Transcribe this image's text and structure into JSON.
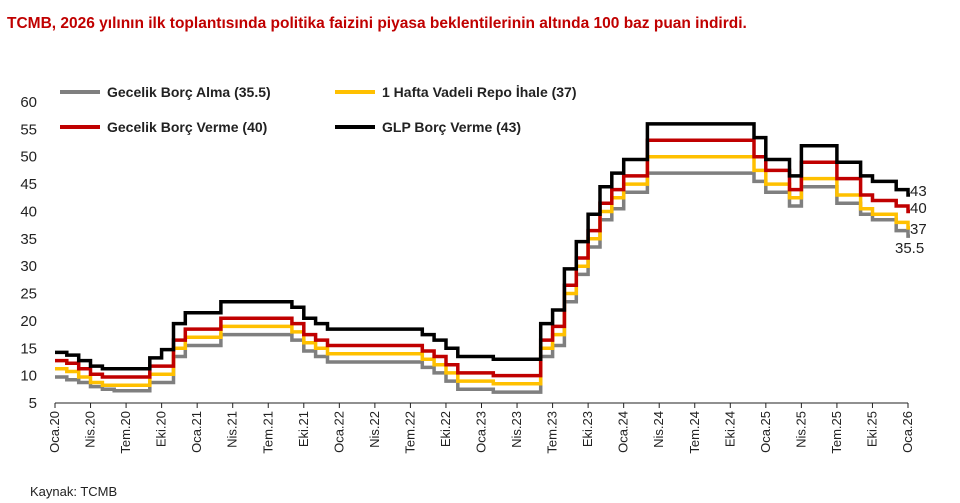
{
  "title": "TCMB, 2026 yılının ilk toplantısında politika faizini piyasa beklentilerinin altında 100 baz puan indirdi.",
  "source": "Kaynak: TCMB",
  "chart_data": {
    "type": "line",
    "ylim": [
      5,
      60
    ],
    "yticks": [
      5,
      10,
      15,
      20,
      25,
      30,
      35,
      40,
      45,
      50,
      55,
      60
    ],
    "xlim": [
      "2020-01",
      "2026-01"
    ],
    "xticks": [
      {
        "month": "2020-01",
        "label": "Oca.20"
      },
      {
        "month": "2020-04",
        "label": "Nis.20"
      },
      {
        "month": "2020-07",
        "label": "Tem.20"
      },
      {
        "month": "2020-10",
        "label": "Eki.20"
      },
      {
        "month": "2021-01",
        "label": "Oca.21"
      },
      {
        "month": "2021-04",
        "label": "Nis.21"
      },
      {
        "month": "2021-07",
        "label": "Tem.21"
      },
      {
        "month": "2021-10",
        "label": "Eki.21"
      },
      {
        "month": "2022-01",
        "label": "Oca.22"
      },
      {
        "month": "2022-04",
        "label": "Nis.22"
      },
      {
        "month": "2022-07",
        "label": "Tem.22"
      },
      {
        "month": "2022-10",
        "label": "Eki.22"
      },
      {
        "month": "2023-01",
        "label": "Oca.23"
      },
      {
        "month": "2023-04",
        "label": "Nis.23"
      },
      {
        "month": "2023-07",
        "label": "Tem.23"
      },
      {
        "month": "2023-10",
        "label": "Eki.23"
      },
      {
        "month": "2024-01",
        "label": "Oca.24"
      },
      {
        "month": "2024-04",
        "label": "Nis.24"
      },
      {
        "month": "2024-07",
        "label": "Tem.24"
      },
      {
        "month": "2024-10",
        "label": "Eki.24"
      },
      {
        "month": "2025-01",
        "label": "Oca.25"
      },
      {
        "month": "2025-04",
        "label": "Nis.25"
      },
      {
        "month": "2025-07",
        "label": "Tem.25"
      },
      {
        "month": "2025-10",
        "label": "Eki.25"
      },
      {
        "month": "2026-01",
        "label": "Oca.26"
      }
    ],
    "legend_position": "top-left, two columns",
    "series": [
      {
        "name": "Gecelik Borç Alma (35.5)",
        "color": "#7f7f7f",
        "end_label": "35.5",
        "points": [
          [
            "2020-01",
            9.75
          ],
          [
            "2020-02",
            9.25
          ],
          [
            "2020-03",
            8.75
          ],
          [
            "2020-04",
            8.0
          ],
          [
            "2020-05",
            7.5
          ],
          [
            "2020-06",
            7.25
          ],
          [
            "2020-09",
            8.75
          ],
          [
            "2020-11",
            13.5
          ],
          [
            "2020-12",
            15.5
          ],
          [
            "2021-03",
            17.5
          ],
          [
            "2021-09",
            16.5
          ],
          [
            "2021-10",
            14.5
          ],
          [
            "2021-11",
            13.5
          ],
          [
            "2021-12",
            12.5
          ],
          [
            "2022-08",
            11.5
          ],
          [
            "2022-09",
            10.5
          ],
          [
            "2022-10",
            9.0
          ],
          [
            "2022-11",
            7.5
          ],
          [
            "2023-02",
            7.0
          ],
          [
            "2023-06",
            13.5
          ],
          [
            "2023-07",
            15.5
          ],
          [
            "2023-08",
            23.5
          ],
          [
            "2023-09",
            28.5
          ],
          [
            "2023-10",
            33.5
          ],
          [
            "2023-11",
            38.5
          ],
          [
            "2023-12",
            40.5
          ],
          [
            "2024-01",
            43.5
          ],
          [
            "2024-03",
            47.0
          ],
          [
            "2024-12",
            45.5
          ],
          [
            "2025-01",
            43.5
          ],
          [
            "2025-03",
            41.0
          ],
          [
            "2025-04",
            44.5
          ],
          [
            "2025-07",
            41.5
          ],
          [
            "2025-09",
            39.5
          ],
          [
            "2025-10",
            38.5
          ],
          [
            "2025-12",
            36.5
          ],
          [
            "2026-01",
            35.5
          ]
        ]
      },
      {
        "name": "1 Hafta Vadeli Repo İhale (37)",
        "color": "#ffc000",
        "end_label": "37",
        "points": [
          [
            "2020-01",
            11.25
          ],
          [
            "2020-02",
            10.75
          ],
          [
            "2020-03",
            9.75
          ],
          [
            "2020-04",
            8.75
          ],
          [
            "2020-05",
            8.25
          ],
          [
            "2020-09",
            10.25
          ],
          [
            "2020-11",
            15.0
          ],
          [
            "2020-12",
            17.0
          ],
          [
            "2021-03",
            19.0
          ],
          [
            "2021-09",
            18.0
          ],
          [
            "2021-10",
            16.0
          ],
          [
            "2021-11",
            15.0
          ],
          [
            "2021-12",
            14.0
          ],
          [
            "2022-08",
            13.0
          ],
          [
            "2022-09",
            12.0
          ],
          [
            "2022-10",
            10.5
          ],
          [
            "2022-11",
            9.0
          ],
          [
            "2023-02",
            8.5
          ],
          [
            "2023-06",
            15.0
          ],
          [
            "2023-07",
            17.5
          ],
          [
            "2023-08",
            25.0
          ],
          [
            "2023-09",
            30.0
          ],
          [
            "2023-10",
            35.0
          ],
          [
            "2023-11",
            40.0
          ],
          [
            "2023-12",
            42.5
          ],
          [
            "2024-01",
            45.0
          ],
          [
            "2024-03",
            50.0
          ],
          [
            "2024-12",
            47.5
          ],
          [
            "2025-01",
            45.0
          ],
          [
            "2025-03",
            42.5
          ],
          [
            "2025-04",
            46.0
          ],
          [
            "2025-07",
            43.0
          ],
          [
            "2025-09",
            40.5
          ],
          [
            "2025-10",
            39.5
          ],
          [
            "2025-12",
            38.0
          ],
          [
            "2026-01",
            37.0
          ]
        ]
      },
      {
        "name": "Gecelik Borç Verme (40)",
        "color": "#c00000",
        "end_label": "40",
        "points": [
          [
            "2020-01",
            12.75
          ],
          [
            "2020-02",
            12.25
          ],
          [
            "2020-03",
            11.25
          ],
          [
            "2020-04",
            10.25
          ],
          [
            "2020-05",
            9.75
          ],
          [
            "2020-09",
            11.75
          ],
          [
            "2020-11",
            16.5
          ],
          [
            "2020-12",
            18.5
          ],
          [
            "2021-03",
            20.5
          ],
          [
            "2021-09",
            19.5
          ],
          [
            "2021-10",
            17.5
          ],
          [
            "2021-11",
            16.5
          ],
          [
            "2021-12",
            15.5
          ],
          [
            "2022-08",
            14.5
          ],
          [
            "2022-09",
            13.5
          ],
          [
            "2022-10",
            12.0
          ],
          [
            "2022-11",
            10.5
          ],
          [
            "2023-02",
            10.0
          ],
          [
            "2023-06",
            16.5
          ],
          [
            "2023-07",
            19.0
          ],
          [
            "2023-08",
            26.5
          ],
          [
            "2023-09",
            31.5
          ],
          [
            "2023-10",
            36.5
          ],
          [
            "2023-11",
            41.5
          ],
          [
            "2023-12",
            44.0
          ],
          [
            "2024-01",
            46.5
          ],
          [
            "2024-03",
            53.0
          ],
          [
            "2024-12",
            50.0
          ],
          [
            "2025-01",
            47.5
          ],
          [
            "2025-03",
            44.0
          ],
          [
            "2025-04",
            49.0
          ],
          [
            "2025-07",
            46.0
          ],
          [
            "2025-09",
            43.0
          ],
          [
            "2025-10",
            42.0
          ],
          [
            "2025-12",
            41.0
          ],
          [
            "2026-01",
            40.0
          ]
        ]
      },
      {
        "name": "GLP Borç Verme (43)",
        "color": "#000000",
        "end_label": "43",
        "points": [
          [
            "2020-01",
            14.25
          ],
          [
            "2020-02",
            13.75
          ],
          [
            "2020-03",
            12.75
          ],
          [
            "2020-04",
            11.75
          ],
          [
            "2020-05",
            11.25
          ],
          [
            "2020-09",
            13.25
          ],
          [
            "2020-10",
            14.75
          ],
          [
            "2020-11",
            19.5
          ],
          [
            "2020-12",
            21.5
          ],
          [
            "2021-03",
            23.5
          ],
          [
            "2021-09",
            22.5
          ],
          [
            "2021-10",
            20.5
          ],
          [
            "2021-11",
            19.5
          ],
          [
            "2021-12",
            18.5
          ],
          [
            "2022-08",
            17.5
          ],
          [
            "2022-09",
            16.5
          ],
          [
            "2022-10",
            15.0
          ],
          [
            "2022-11",
            13.5
          ],
          [
            "2023-02",
            13.0
          ],
          [
            "2023-06",
            19.5
          ],
          [
            "2023-07",
            22.0
          ],
          [
            "2023-08",
            29.5
          ],
          [
            "2023-09",
            34.5
          ],
          [
            "2023-10",
            39.5
          ],
          [
            "2023-11",
            44.5
          ],
          [
            "2023-12",
            47.0
          ],
          [
            "2024-01",
            49.5
          ],
          [
            "2024-03",
            56.0
          ],
          [
            "2024-12",
            53.5
          ],
          [
            "2025-01",
            49.5
          ],
          [
            "2025-03",
            46.5
          ],
          [
            "2025-04",
            52.0
          ],
          [
            "2025-07",
            49.0
          ],
          [
            "2025-09",
            46.5
          ],
          [
            "2025-10",
            45.5
          ],
          [
            "2025-12",
            44.0
          ],
          [
            "2026-01",
            43.0
          ]
        ]
      }
    ]
  }
}
